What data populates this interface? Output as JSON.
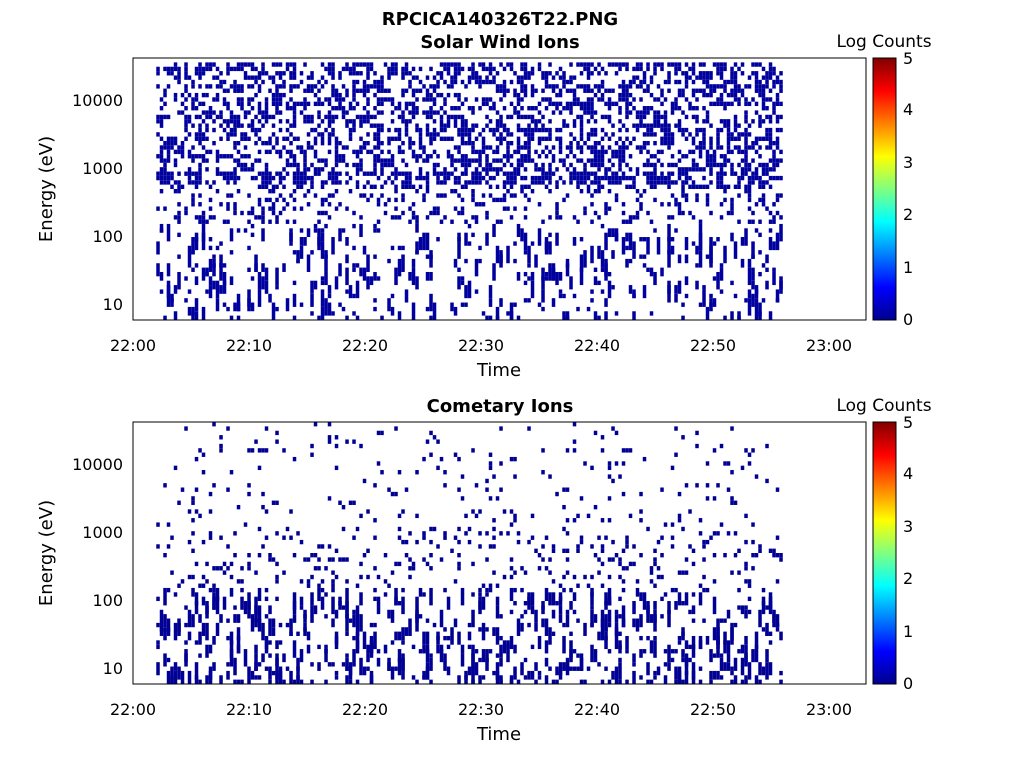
{
  "figure_title": "RPCICA140326T22.PNG",
  "chart_data": [
    {
      "type": "heatmap",
      "title": "Solar Wind Ions",
      "xlabel": "Time",
      "ylabel": "Energy (eV)",
      "x_range": [
        "22:00",
        "23:03"
      ],
      "x_ticks": [
        "22:00",
        "22:10",
        "22:20",
        "22:30",
        "22:40",
        "22:50",
        "23:00"
      ],
      "y_scale": "log",
      "y_range": [
        6,
        40000
      ],
      "y_ticks": [
        "10",
        "100",
        "1000",
        "10000"
      ],
      "data_time_range": [
        "22:02",
        "22:56"
      ],
      "colorbar": {
        "label": "Log Counts",
        "range": [
          0,
          5
        ],
        "ticks": [
          "0",
          "1",
          "2",
          "3",
          "4",
          "5"
        ],
        "colormap": "jet"
      },
      "dominant_level": 0.15,
      "peak_energy_band_eV": 700,
      "grid": false,
      "legend": "none"
    },
    {
      "type": "heatmap",
      "title": "Cometary Ions",
      "xlabel": "Time",
      "ylabel": "Energy (eV)",
      "x_range": [
        "22:00",
        "23:03"
      ],
      "x_ticks": [
        "22:00",
        "22:10",
        "22:20",
        "22:30",
        "22:40",
        "22:50",
        "23:00"
      ],
      "y_scale": "log",
      "y_range": [
        6,
        40000
      ],
      "y_ticks": [
        "10",
        "100",
        "1000",
        "10000"
      ],
      "data_time_range": [
        "22:02",
        "22:56"
      ],
      "colorbar": {
        "label": "Log Counts",
        "range": [
          0,
          5
        ],
        "ticks": [
          "0",
          "1",
          "2",
          "3",
          "4",
          "5"
        ],
        "colormap": "jet"
      },
      "dominant_level": 0.1,
      "grid": false,
      "legend": "none"
    }
  ]
}
